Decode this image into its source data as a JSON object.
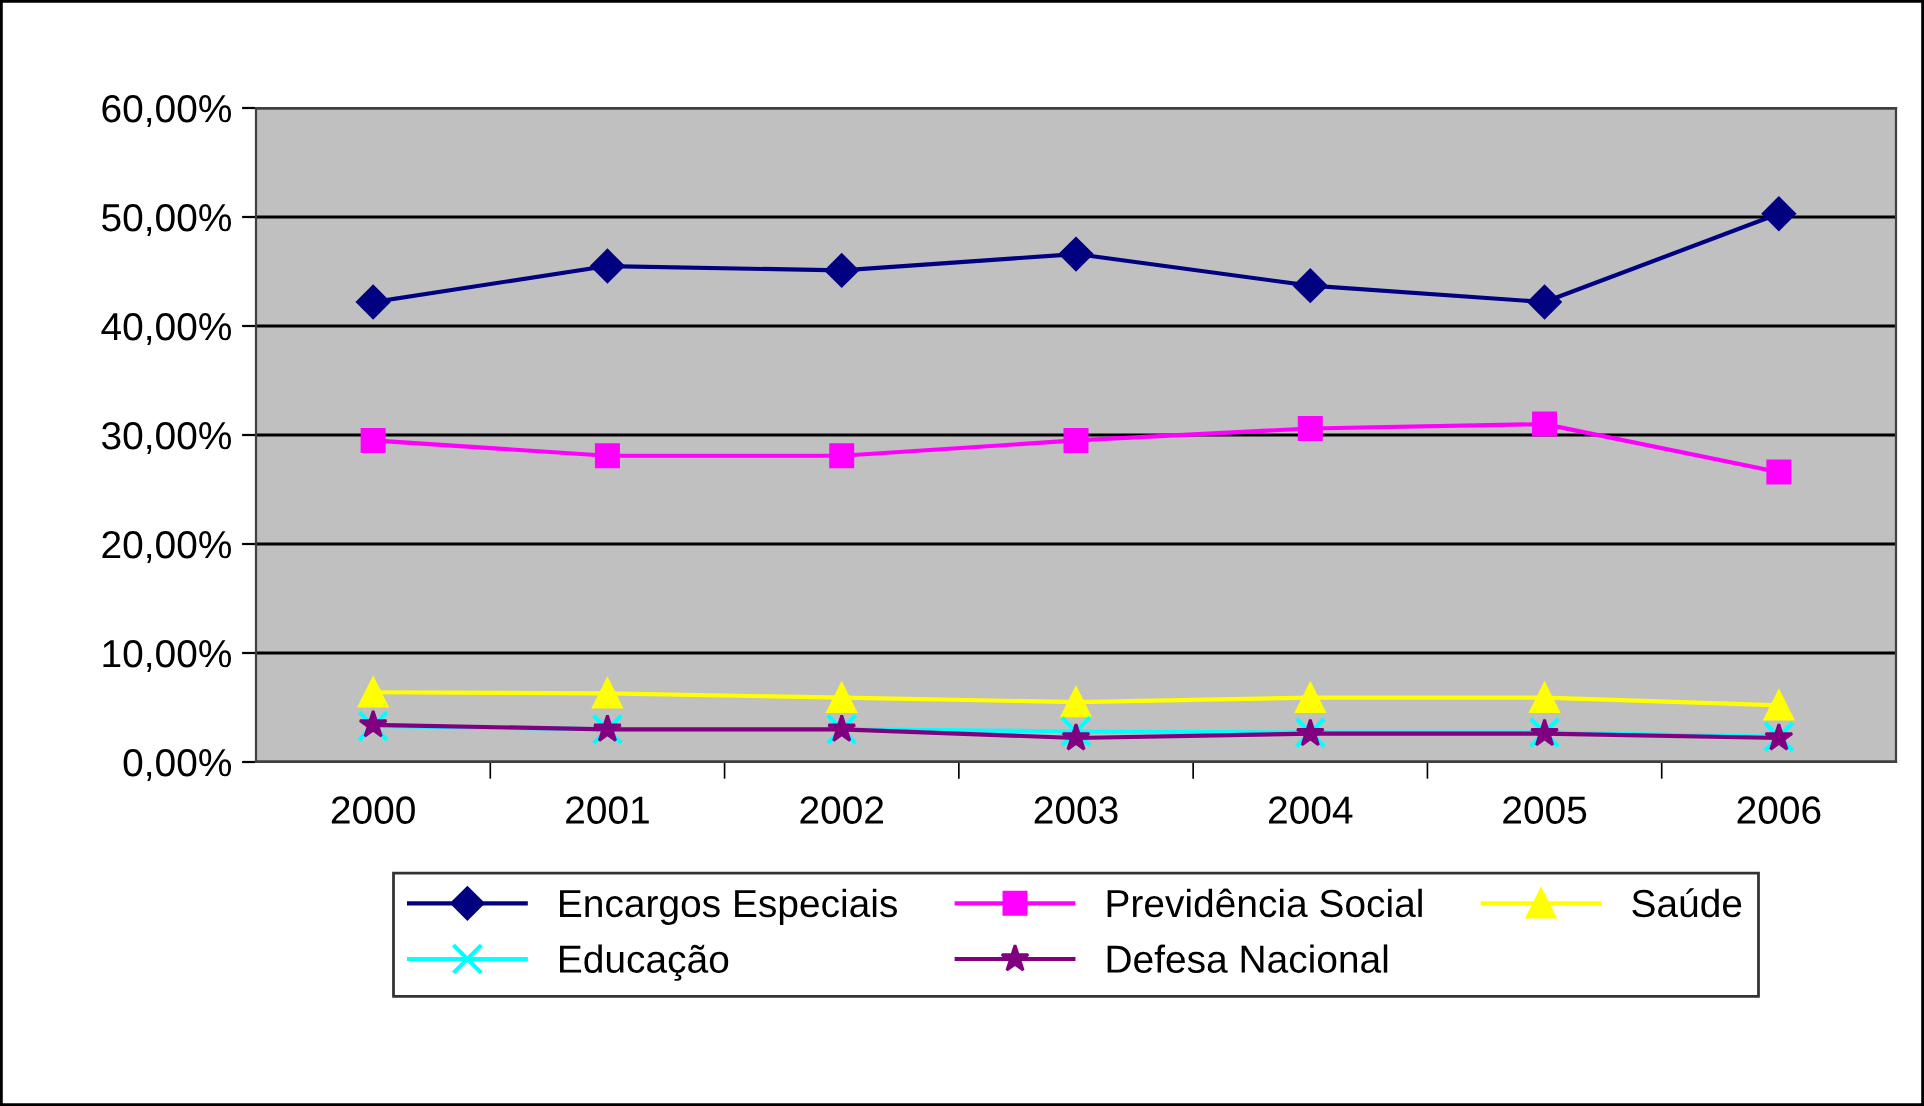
{
  "chart_data": {
    "type": "line",
    "categories": [
      "2000",
      "2001",
      "2002",
      "2003",
      "2004",
      "2005",
      "2006"
    ],
    "series": [
      {
        "name": "Encargos Especiais",
        "color": "#000080",
        "marker": "diamond",
        "values": [
          42.2,
          45.5,
          45.1,
          46.6,
          43.7,
          42.2,
          50.3
        ]
      },
      {
        "name": "Previdência Social",
        "color": "#ff00ff",
        "marker": "square",
        "values": [
          29.5,
          28.1,
          28.1,
          29.5,
          30.6,
          31.0,
          26.6
        ]
      },
      {
        "name": "Saúde",
        "color": "#ffff00",
        "marker": "triangle",
        "values": [
          6.4,
          6.3,
          5.9,
          5.5,
          5.9,
          5.9,
          5.2
        ]
      },
      {
        "name": "Educação",
        "color": "#00ffff",
        "marker": "cross",
        "values": [
          3.3,
          3.0,
          3.0,
          2.8,
          2.7,
          2.7,
          2.3
        ]
      },
      {
        "name": "Defesa Nacional",
        "color": "#800080",
        "marker": "star",
        "values": [
          3.4,
          3.0,
          3.0,
          2.2,
          2.6,
          2.6,
          2.2
        ]
      }
    ],
    "ylim": [
      0,
      60
    ],
    "yticks": [
      {
        "value": 0,
        "label": "0,00%"
      },
      {
        "value": 10,
        "label": "10,00%"
      },
      {
        "value": 20,
        "label": "20,00%"
      },
      {
        "value": 30,
        "label": "30,00%"
      },
      {
        "value": 40,
        "label": "40,00%"
      },
      {
        "value": 50,
        "label": "50,00%"
      },
      {
        "value": 60,
        "label": "60,00%"
      }
    ],
    "grid": "y",
    "legend": "bottom",
    "line_style": "solid"
  }
}
